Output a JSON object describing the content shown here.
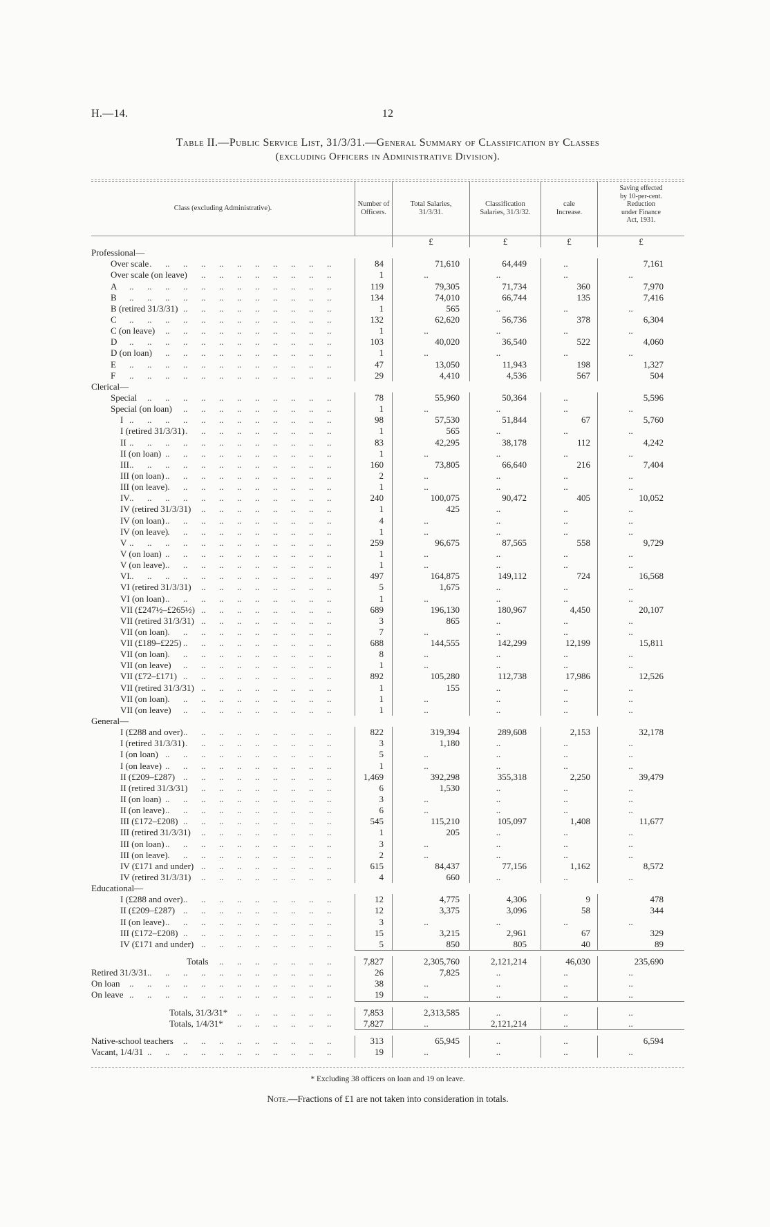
{
  "colors": {
    "paper": "#fbfbfa",
    "ink": "#232323",
    "rule": "#7d7d7d"
  },
  "page": {
    "doc_ref": "H.—14.",
    "page_number": "12"
  },
  "title": {
    "line1": "Table II.—Public Service List, 31/3/31.—General Summary of Classification by Classes",
    "line2": "(excluding Officers in Administrative Division)."
  },
  "table": {
    "columns": [
      "Class (excluding Administrative).",
      "Number of\nOfficers.",
      "Total Salaries,\n31/3/31.",
      "Classification\nSalaries, 31/3/32.",
      "cale\nIncrease.",
      "Saving effected\nby 10-per-cent.\nReduction\nunder Finance\nAct, 1931."
    ],
    "currency_symbol": "£",
    "rows": [
      {
        "type": "currency",
        "cells": [
          "",
          "£",
          "£",
          "£",
          "£"
        ]
      },
      {
        "type": "section",
        "label": "Professional—"
      },
      {
        "label": "Over scale",
        "indent": 1,
        "cells": [
          "84",
          "71,610",
          "64,449",
          "..",
          "7,161"
        ]
      },
      {
        "label": "Over scale (on leave)",
        "indent": 1,
        "cells": [
          "1",
          "..",
          "..",
          "..",
          ".."
        ]
      },
      {
        "label": "A",
        "indent": 1,
        "cells": [
          "119",
          "79,305",
          "71,734",
          "360",
          "7,970"
        ]
      },
      {
        "label": "B",
        "indent": 1,
        "cells": [
          "134",
          "74,010",
          "66,744",
          "135",
          "7,416"
        ]
      },
      {
        "label": "B (retired 31/3/31)",
        "indent": 1,
        "cells": [
          "1",
          "565",
          "..",
          "..",
          ".."
        ]
      },
      {
        "label": "C",
        "indent": 1,
        "cells": [
          "132",
          "62,620",
          "56,736",
          "378",
          "6,304"
        ]
      },
      {
        "label": "C (on leave)",
        "indent": 1,
        "cells": [
          "1",
          "..",
          "..",
          "..",
          ".."
        ]
      },
      {
        "label": "D",
        "indent": 1,
        "cells": [
          "103",
          "40,020",
          "36,540",
          "522",
          "4,060"
        ]
      },
      {
        "label": "D (on loan)",
        "indent": 1,
        "cells": [
          "1",
          "..",
          "..",
          "..",
          ".."
        ]
      },
      {
        "label": "E",
        "indent": 1,
        "cells": [
          "47",
          "13,050",
          "11,943",
          "198",
          "1,327"
        ]
      },
      {
        "label": "F",
        "indent": 1,
        "cells": [
          "29",
          "4,410",
          "4,536",
          "567",
          "504"
        ]
      },
      {
        "type": "section",
        "label": "Clerical—"
      },
      {
        "label": "Special",
        "indent": 1,
        "cells": [
          "78",
          "55,960",
          "50,364",
          "..",
          "5,596"
        ]
      },
      {
        "label": "Special (on loan)",
        "indent": 1,
        "cells": [
          "1",
          "..",
          "..",
          "..",
          ".."
        ]
      },
      {
        "label": "I",
        "indent": 2,
        "cells": [
          "98",
          "57,530",
          "51,844",
          "67",
          "5,760"
        ]
      },
      {
        "label": "I (retired 31/3/31)",
        "indent": 2,
        "cells": [
          "1",
          "565",
          "..",
          "..",
          ".."
        ]
      },
      {
        "label": "II",
        "indent": 2,
        "cells": [
          "83",
          "42,295",
          "38,178",
          "112",
          "4,242"
        ]
      },
      {
        "label": "II (on loan)",
        "indent": 2,
        "cells": [
          "1",
          "..",
          "..",
          "..",
          ".."
        ]
      },
      {
        "label": "III",
        "indent": 2,
        "cells": [
          "160",
          "73,805",
          "66,640",
          "216",
          "7,404"
        ]
      },
      {
        "label": "III (on loan)",
        "indent": 2,
        "cells": [
          "2",
          "..",
          "..",
          "..",
          ".."
        ]
      },
      {
        "label": "III (on leave)",
        "indent": 2,
        "cells": [
          "1",
          "..",
          "..",
          "..",
          ".."
        ]
      },
      {
        "label": "IV",
        "indent": 2,
        "cells": [
          "240",
          "100,075",
          "90,472",
          "405",
          "10,052"
        ]
      },
      {
        "label": "IV (retired 31/3/31)",
        "indent": 2,
        "cells": [
          "1",
          "425",
          "..",
          "..",
          ".."
        ]
      },
      {
        "label": "IV (on loan)",
        "indent": 2,
        "cells": [
          "4",
          "..",
          "..",
          "..",
          ".."
        ]
      },
      {
        "label": "IV (on leave)",
        "indent": 2,
        "cells": [
          "1",
          "..",
          "..",
          "..",
          ".."
        ]
      },
      {
        "label": "V",
        "indent": 2,
        "cells": [
          "259",
          "96,675",
          "87,565",
          "558",
          "9,729"
        ]
      },
      {
        "label": "V (on loan)",
        "indent": 2,
        "cells": [
          "1",
          "..",
          "..",
          "..",
          ".."
        ]
      },
      {
        "label": "V (on leave)",
        "indent": 2,
        "cells": [
          "1",
          "..",
          "..",
          "..",
          ".."
        ]
      },
      {
        "label": "VI",
        "indent": 2,
        "cells": [
          "497",
          "164,875",
          "149,112",
          "724",
          "16,568"
        ]
      },
      {
        "label": "VI (retired 31/3/31)",
        "indent": 2,
        "cells": [
          "5",
          "1,675",
          "..",
          "..",
          ".."
        ]
      },
      {
        "label": "VI (on loan)",
        "indent": 2,
        "cells": [
          "1",
          "..",
          "..",
          "..",
          ".."
        ]
      },
      {
        "label": "VII (£247½–£265½)",
        "indent": 2,
        "cells": [
          "689",
          "196,130",
          "180,967",
          "4,450",
          "20,107"
        ]
      },
      {
        "label": "VII (retired 31/3/31)",
        "indent": 2,
        "cells": [
          "3",
          "865",
          "..",
          "..",
          ".."
        ]
      },
      {
        "label": "VII (on loan)",
        "indent": 2,
        "cells": [
          "7",
          "..",
          "..",
          "..",
          ".."
        ]
      },
      {
        "label": "VII (£189–£225)",
        "indent": 2,
        "cells": [
          "688",
          "144,555",
          "142,299",
          "12,199",
          "15,811"
        ]
      },
      {
        "label": "VII (on loan)",
        "indent": 2,
        "cells": [
          "8",
          "..",
          "..",
          "..",
          ".."
        ]
      },
      {
        "label": "VII (on leave)",
        "indent": 2,
        "cells": [
          "1",
          "..",
          "..",
          "..",
          ".."
        ]
      },
      {
        "label": "VII (£72–£171)",
        "indent": 2,
        "cells": [
          "892",
          "105,280",
          "112,738",
          "17,986",
          "12,526"
        ]
      },
      {
        "label": "VII (retired 31/3/31)",
        "indent": 2,
        "cells": [
          "1",
          "155",
          "..",
          "..",
          ".."
        ]
      },
      {
        "label": "VII (on loan)",
        "indent": 2,
        "cells": [
          "1",
          "..",
          "..",
          "..",
          ".."
        ]
      },
      {
        "label": "VII (on leave)",
        "indent": 2,
        "cells": [
          "1",
          "..",
          "..",
          "..",
          ".."
        ]
      },
      {
        "type": "section",
        "label": "General—"
      },
      {
        "label": "I (£288 and over)",
        "indent": 2,
        "cells": [
          "822",
          "319,394",
          "289,608",
          "2,153",
          "32,178"
        ]
      },
      {
        "label": "I (retired 31/3/31)",
        "indent": 2,
        "cells": [
          "3",
          "1,180",
          "..",
          "..",
          ".."
        ]
      },
      {
        "label": "I (on loan)",
        "indent": 2,
        "cells": [
          "5",
          "..",
          "..",
          "..",
          ".."
        ]
      },
      {
        "label": "I (on leave)",
        "indent": 2,
        "cells": [
          "1",
          "..",
          "..",
          "..",
          ".."
        ]
      },
      {
        "label": "II (£209–£287)",
        "indent": 2,
        "cells": [
          "1,469",
          "392,298",
          "355,318",
          "2,250",
          "39,479"
        ]
      },
      {
        "label": "II (retired 31/3/31)",
        "indent": 2,
        "cells": [
          "6",
          "1,530",
          "..",
          "..",
          ".."
        ]
      },
      {
        "label": "II (on loan)",
        "indent": 2,
        "cells": [
          "3",
          "..",
          "..",
          "..",
          ".."
        ]
      },
      {
        "label": "II (on leave)",
        "indent": 2,
        "cells": [
          "6",
          "..",
          "..",
          "..",
          ".."
        ]
      },
      {
        "label": "III (£172–£208)",
        "indent": 2,
        "cells": [
          "545",
          "115,210",
          "105,097",
          "1,408",
          "11,677"
        ]
      },
      {
        "label": "III (retired 31/3/31)",
        "indent": 2,
        "cells": [
          "1",
          "205",
          "..",
          "..",
          ".."
        ]
      },
      {
        "label": "III (on loan)",
        "indent": 2,
        "cells": [
          "3",
          "..",
          "..",
          "..",
          ".."
        ]
      },
      {
        "label": "III (on leave)",
        "indent": 2,
        "cells": [
          "2",
          "..",
          "..",
          "..",
          ".."
        ]
      },
      {
        "label": "IV (£171 and under)",
        "indent": 2,
        "cells": [
          "615",
          "84,437",
          "77,156",
          "1,162",
          "8,572"
        ]
      },
      {
        "label": "IV (retired 31/3/31)",
        "indent": 2,
        "cells": [
          "4",
          "660",
          "..",
          "..",
          ".."
        ]
      },
      {
        "type": "section",
        "label": "Educational—"
      },
      {
        "label": "I (£288 and over)",
        "indent": 2,
        "cells": [
          "12",
          "4,775",
          "4,306",
          "9",
          "478"
        ]
      },
      {
        "label": "II (£209–£287)",
        "indent": 2,
        "cells": [
          "12",
          "3,375",
          "3,096",
          "58",
          "344"
        ]
      },
      {
        "label": "II (on leave)",
        "indent": 2,
        "cells": [
          "3",
          "..",
          "..",
          "..",
          ".."
        ]
      },
      {
        "label": "III (£172–£208)",
        "indent": 2,
        "cells": [
          "15",
          "3,215",
          "2,961",
          "67",
          "329"
        ]
      },
      {
        "label": "IV (£171 and under)",
        "indent": 2,
        "cells": [
          "5",
          "850",
          "805",
          "40",
          "89"
        ]
      },
      {
        "type": "gap",
        "rule": true
      },
      {
        "label": "Totals",
        "indent": 5,
        "cells": [
          "7,827",
          "2,305,760",
          "2,121,214",
          "46,030",
          "235,690"
        ]
      },
      {
        "label": "Retired 31/3/31",
        "indent": 0,
        "cells": [
          "26",
          "7,825",
          "..",
          "..",
          ".."
        ]
      },
      {
        "label": "On loan",
        "indent": 0,
        "cells": [
          "38",
          "..",
          "..",
          "..",
          ".."
        ]
      },
      {
        "label": "On leave",
        "indent": 0,
        "cells": [
          "19",
          "..",
          "..",
          "..",
          ".."
        ]
      },
      {
        "type": "gap",
        "rule": true
      },
      {
        "label": "Totals, 31/3/31*",
        "indent": 4,
        "cells": [
          "7,853",
          "2,313,585",
          "..",
          "..",
          ".."
        ]
      },
      {
        "label": "Totals, 1/4/31*",
        "indent": 4,
        "cells": [
          "7,827",
          "..",
          "2,121,214",
          "..",
          ".."
        ]
      },
      {
        "type": "gap",
        "rule": true
      },
      {
        "label": "Native-school teachers",
        "indent": 0,
        "cells": [
          "313",
          "65,945",
          "..",
          "..",
          "6,594"
        ]
      },
      {
        "label": "Vacant, 1/4/31",
        "indent": 0,
        "cells": [
          "19",
          "..",
          "..",
          "..",
          ".."
        ]
      },
      {
        "type": "gap",
        "rule": false,
        "end": true
      }
    ]
  },
  "footnote": "* Excluding 38 officers on loan and 19 on leave.",
  "note": {
    "prefix": "Note.",
    "text": "—Fractions of £1 are not taken into consideration in totals."
  }
}
